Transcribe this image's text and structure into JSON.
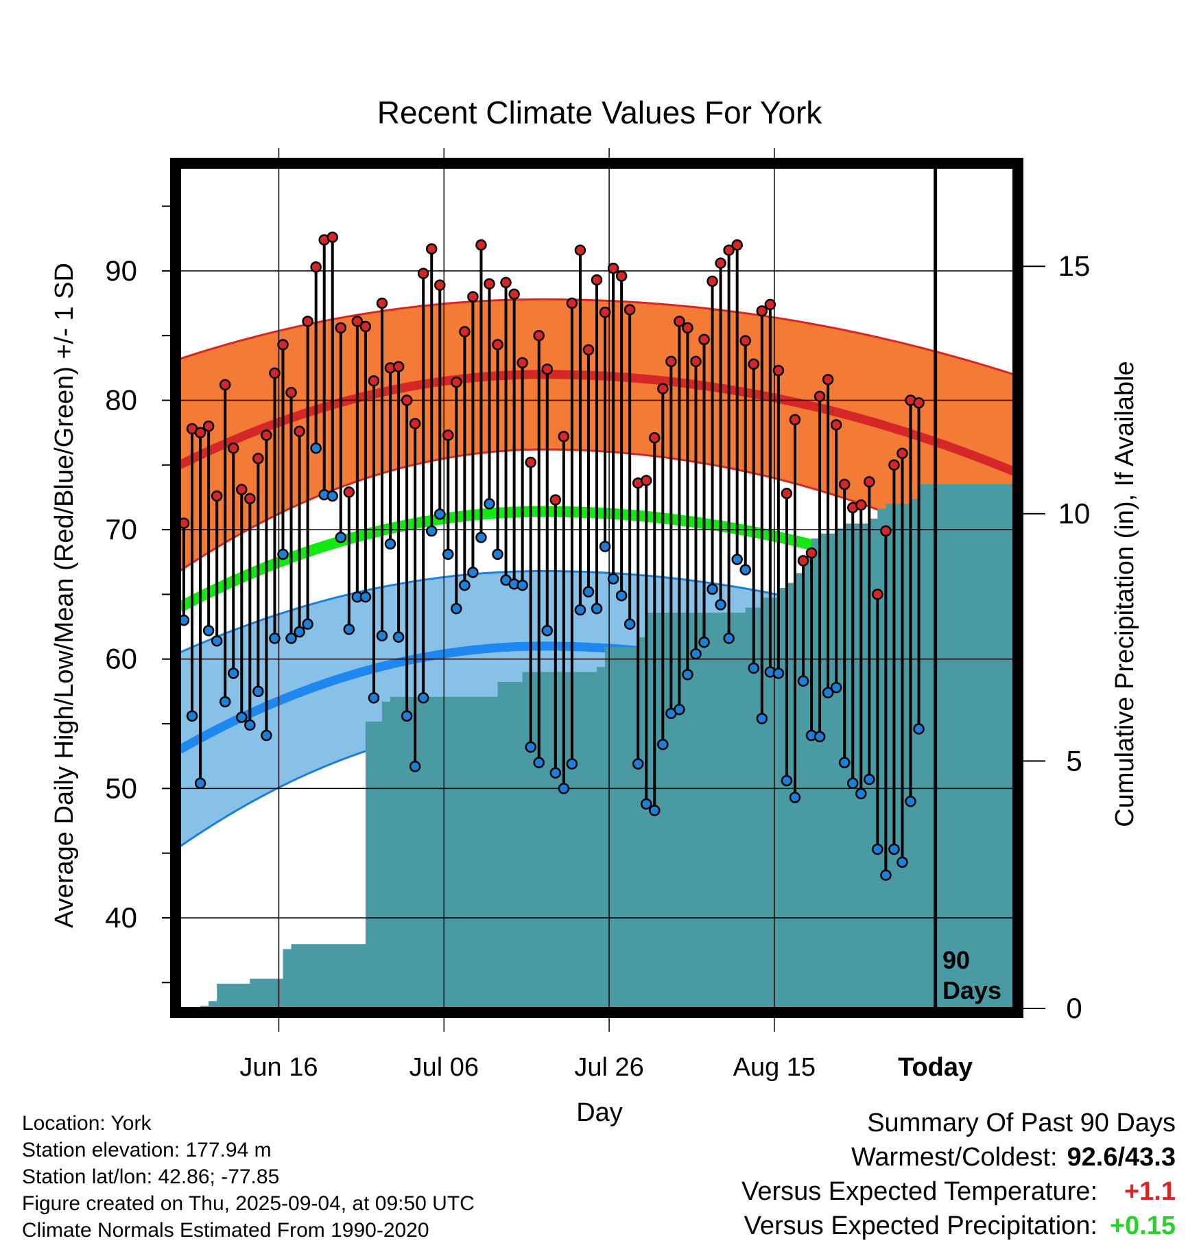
{
  "chart_data": {
    "type": "line",
    "title": "Recent Climate Values For York",
    "xlabel": "Day",
    "ylabel": "Average Daily High/Low/Mean (Red/Blue/Green) +/- 1 SD",
    "y2label": "Cumulative Precipitation (in), If Available",
    "ylim": [
      33,
      98
    ],
    "y2lim": [
      0,
      17
    ],
    "yticks": [
      "40",
      "50",
      "60",
      "70",
      "80",
      "90"
    ],
    "y2ticks": [
      "0",
      "5",
      "10",
      "15"
    ],
    "x_tick_labels": [
      {
        "day": 12,
        "label": "Jun 16"
      },
      {
        "day": 32,
        "label": "Jul 06"
      },
      {
        "day": 52,
        "label": "Jul 26"
      },
      {
        "day": 72,
        "label": "Aug 15"
      },
      {
        "day": 91.5,
        "label": "Today"
      }
    ],
    "xlim": [
      0,
      101
    ],
    "today_marker": {
      "day": 91.5,
      "label_line1": "90",
      "label_line2": "Days"
    },
    "grid": true,
    "normals": {
      "high_mean": {
        "start": 75,
        "peak": 82,
        "end": 74.5
      },
      "high_sd": {
        "start": 8.2,
        "peak": 5.8,
        "end": 7.5
      },
      "low_mean": {
        "start": 53,
        "peak": 61,
        "end": 52.5
      },
      "low_sd": {
        "start": 7.5,
        "peak": 5.8,
        "end": 7
      },
      "avg_mean": {
        "start": 64,
        "peak": 71.4,
        "end": 63.5
      },
      "peak_day": 44
    },
    "series": [
      {
        "name": "High",
        "color": "#d62728",
        "values": [
          70.5,
          77.8,
          77.5,
          78,
          72.6,
          81.2,
          76.3,
          73.1,
          72.4,
          75.5,
          77.3,
          82.1,
          84.3,
          80.6,
          77.6,
          86.1,
          90.3,
          92.4,
          92.6,
          85.6,
          72.9,
          86.1,
          85.7,
          81.5,
          87.5,
          82.5,
          82.6,
          80,
          78.2,
          89.8,
          91.7,
          88.9,
          77.3,
          81.4,
          85.3,
          88,
          92,
          89,
          84.3,
          89.1,
          88.2,
          82.9,
          75.2,
          85,
          82.4,
          72.3,
          77.2,
          87.5,
          91.6,
          83.9,
          89.3,
          86.8,
          90.2,
          89.6,
          87,
          73.6,
          73.8,
          77.1,
          80.9,
          83,
          86.1,
          85.6,
          83,
          84.7,
          89.2,
          90.6,
          91.6,
          92,
          84.6,
          82.8,
          86.9,
          87.4,
          82.3,
          72.8,
          78.5,
          67.6,
          68.2,
          80.3,
          81.6,
          78.1,
          73.5,
          71.7,
          71.9,
          73.7,
          65,
          69.9,
          75,
          75.9,
          80,
          79.8
        ]
      },
      {
        "name": "Low",
        "color": "#1e7fd8",
        "values": [
          63,
          55.6,
          50.4,
          62.2,
          61.4,
          56.7,
          58.9,
          55.5,
          54.9,
          57.5,
          54.1,
          61.6,
          68.1,
          61.6,
          62.1,
          62.7,
          76.3,
          72.7,
          72.6,
          69.4,
          62.3,
          64.8,
          64.8,
          57,
          61.8,
          68.9,
          61.7,
          55.6,
          51.7,
          57,
          69.9,
          71.2,
          68.1,
          63.9,
          65.7,
          66.7,
          69.4,
          72,
          68.1,
          66.1,
          65.8,
          65.7,
          53.2,
          52,
          62.2,
          51.2,
          50,
          51.9,
          63.8,
          65.2,
          63.9,
          68.7,
          66.2,
          64.9,
          62.7,
          51.9,
          48.8,
          48.3,
          53.4,
          55.8,
          56.1,
          58.8,
          60.4,
          61.3,
          65.4,
          64.2,
          61.6,
          67.7,
          66.9,
          59.3,
          55.4,
          59,
          58.9,
          50.6,
          49.3,
          58.3,
          54.1,
          54,
          57.4,
          57.8,
          52,
          50.4,
          49.6,
          50.7,
          45.3,
          43.3,
          45.3,
          44.3,
          49,
          54.6
        ]
      },
      {
        "name": "Precipitation",
        "color": "#4a9aa4",
        "values": [
          0,
          0,
          0.05,
          0.15,
          0.5,
          0.5,
          0.5,
          0.5,
          0.6,
          0.6,
          0.6,
          0.6,
          1.2,
          1.3,
          1.3,
          1.3,
          1.3,
          1.3,
          1.3,
          1.3,
          1.3,
          1.3,
          5.8,
          5.8,
          6.2,
          6.3,
          6.3,
          6.3,
          6.3,
          6.3,
          6.3,
          6.3,
          6.3,
          6.3,
          6.3,
          6.3,
          6.3,
          6.3,
          6.6,
          6.6,
          6.6,
          6.8,
          6.8,
          6.8,
          6.8,
          6.8,
          6.8,
          6.8,
          6.8,
          6.8,
          6.9,
          7.3,
          7.3,
          7.3,
          7.3,
          7.5,
          8,
          8,
          8,
          8,
          8,
          8,
          8,
          8,
          8,
          8,
          8,
          8,
          8.1,
          8.1,
          8.3,
          8.3,
          8.5,
          8.6,
          8.8,
          9.1,
          9.5,
          9.6,
          9.6,
          9.7,
          9.8,
          9.8,
          9.8,
          9.9,
          10.1,
          10.2,
          10.2,
          10.2,
          10.3,
          10.6,
          10.6
        ]
      }
    ]
  },
  "info": {
    "location": "Location: York",
    "elevation": "Station elevation: 177.94 m",
    "latlon": "Station lat/lon: 42.86; -77.85",
    "created": "Figure created on Thu, 2025-09-04, at 09:50 UTC",
    "normals_note": "Climate Normals Estimated From 1990-2020"
  },
  "summary": {
    "title": "Summary Of Past 90 Days",
    "warmest_label": "Warmest/Coldest:",
    "warmest_value": "92.6/43.3",
    "temp_label": "Versus Expected Temperature:",
    "temp_value": "+1.1",
    "precip_label": "Versus Expected Precipitation:",
    "precip_value": "+0.15",
    "temp_color": "#d62728",
    "precip_color": "#2bd12b"
  }
}
